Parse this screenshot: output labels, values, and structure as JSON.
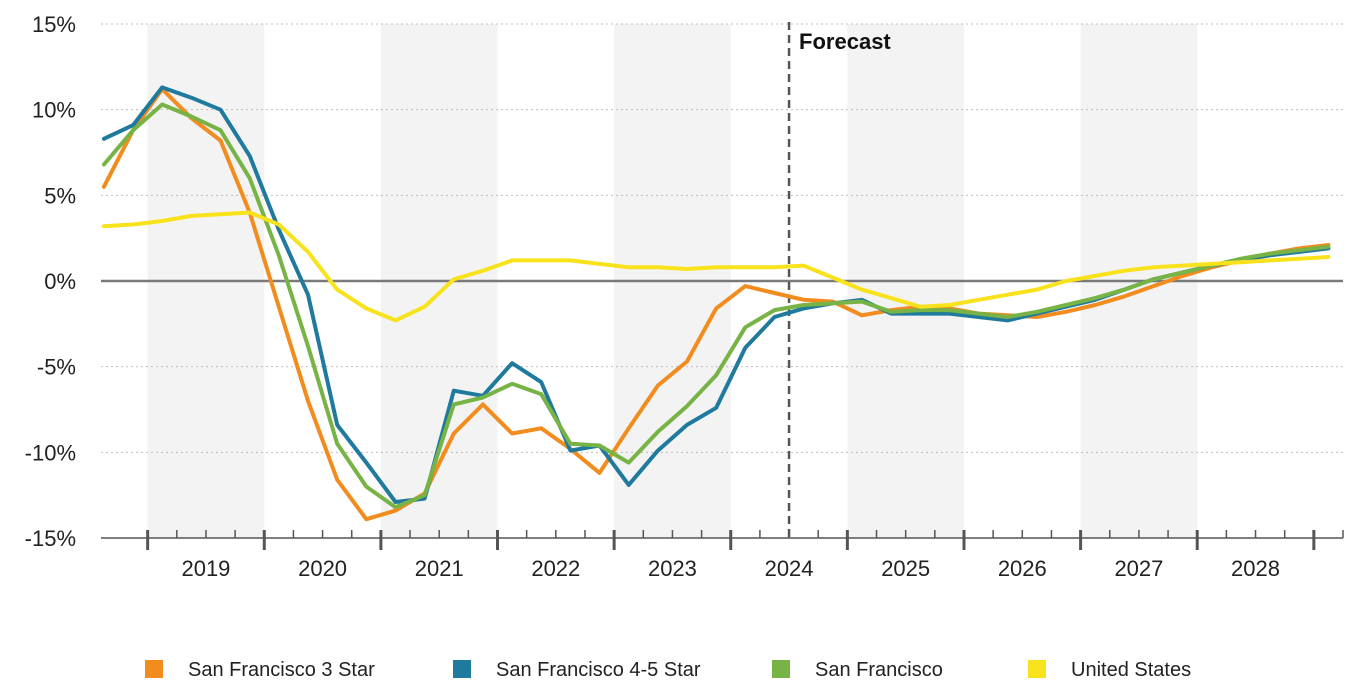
{
  "chart_data": {
    "type": "line",
    "title": "",
    "xlabel": "",
    "ylabel": "",
    "ylim": [
      -15,
      15
    ],
    "yticks": [
      15,
      10,
      5,
      0,
      -5,
      -10,
      -15
    ],
    "ytick_labels": [
      "15%",
      "10%",
      "5%",
      "0%",
      "-5%",
      "-10%",
      "-15%"
    ],
    "x_range": [
      2018.1,
      2028.75
    ],
    "year_labels": [
      "2019",
      "2020",
      "2021",
      "2022",
      "2023",
      "2024",
      "2025",
      "2026",
      "2027",
      "2028"
    ],
    "grid": "horizontal dotted",
    "shaded_bands": [
      [
        2018.5,
        2019.5
      ],
      [
        2020.5,
        2021.5
      ],
      [
        2022.5,
        2023.5
      ],
      [
        2024.5,
        2025.5
      ],
      [
        2026.5,
        2027.5
      ]
    ],
    "forecast_x": 2024.0,
    "annotation": "Forecast",
    "legend_position": "bottom",
    "x": [
      2018.125,
      2018.375,
      2018.625,
      2018.875,
      2019.125,
      2019.375,
      2019.625,
      2019.875,
      2020.125,
      2020.375,
      2020.625,
      2020.875,
      2021.125,
      2021.375,
      2021.625,
      2021.875,
      2022.125,
      2022.375,
      2022.625,
      2022.875,
      2023.125,
      2023.375,
      2023.625,
      2023.875,
      2024.125,
      2024.375,
      2024.625,
      2024.875,
      2025.125,
      2025.375,
      2025.625,
      2025.875,
      2026.125,
      2026.375,
      2026.625,
      2026.875,
      2027.125,
      2027.375,
      2027.625,
      2027.875,
      2028.125,
      2028.375,
      2028.625
    ],
    "series": [
      {
        "name": "San Francisco 3 Star",
        "color": "#f28c1e",
        "values": [
          5.5,
          8.8,
          11.2,
          9.5,
          8.2,
          4.0,
          -1.5,
          -7.0,
          -11.6,
          -13.9,
          -13.4,
          -12.4,
          -8.9,
          -7.2,
          -8.9,
          -8.6,
          -9.8,
          -11.2,
          -8.6,
          -6.1,
          -4.7,
          -1.6,
          -0.3,
          -0.7,
          -1.1,
          -1.2,
          -2.0,
          -1.7,
          -1.5,
          -1.6,
          -1.9,
          -2.0,
          -2.1,
          -1.8,
          -1.4,
          -0.9,
          -0.3,
          0.3,
          0.8,
          1.2,
          1.6,
          1.9,
          2.1
        ]
      },
      {
        "name": "San Francisco 4-5 Star",
        "color": "#1f7a9e",
        "values": [
          8.3,
          9.1,
          11.3,
          10.7,
          10.0,
          7.3,
          3.0,
          -0.8,
          -8.4,
          -10.6,
          -12.9,
          -12.7,
          -6.4,
          -6.7,
          -4.8,
          -5.9,
          -9.9,
          -9.6,
          -11.9,
          -9.9,
          -8.4,
          -7.4,
          -3.9,
          -2.1,
          -1.6,
          -1.3,
          -1.1,
          -1.9,
          -1.9,
          -1.9,
          -2.1,
          -2.3,
          -1.9,
          -1.5,
          -1.1,
          -0.5,
          0.1,
          0.5,
          0.9,
          1.2,
          1.5,
          1.7,
          1.9
        ]
      },
      {
        "name": "San Francisco",
        "color": "#77b345",
        "values": [
          6.8,
          8.8,
          10.3,
          9.6,
          8.8,
          6.0,
          1.5,
          -3.8,
          -9.5,
          -12.0,
          -13.2,
          -12.5,
          -7.2,
          -6.8,
          -6.0,
          -6.6,
          -9.5,
          -9.6,
          -10.6,
          -8.8,
          -7.3,
          -5.5,
          -2.7,
          -1.7,
          -1.4,
          -1.3,
          -1.2,
          -1.8,
          -1.7,
          -1.7,
          -1.9,
          -2.1,
          -1.8,
          -1.4,
          -1.0,
          -0.5,
          0.1,
          0.5,
          0.9,
          1.3,
          1.6,
          1.8,
          2.0
        ]
      },
      {
        "name": "United States",
        "color": "#f7e21b",
        "values": [
          3.2,
          3.3,
          3.5,
          3.8,
          3.9,
          4.0,
          3.3,
          1.7,
          -0.5,
          -1.6,
          -2.3,
          -1.5,
          0.1,
          0.6,
          1.2,
          1.2,
          1.2,
          1.0,
          0.8,
          0.8,
          0.7,
          0.8,
          0.8,
          0.8,
          0.9,
          0.2,
          -0.5,
          -1.0,
          -1.5,
          -1.4,
          -1.1,
          -0.8,
          -0.5,
          0.0,
          0.3,
          0.6,
          0.8,
          0.9,
          1.0,
          1.1,
          1.2,
          1.3,
          1.4
        ]
      }
    ]
  }
}
